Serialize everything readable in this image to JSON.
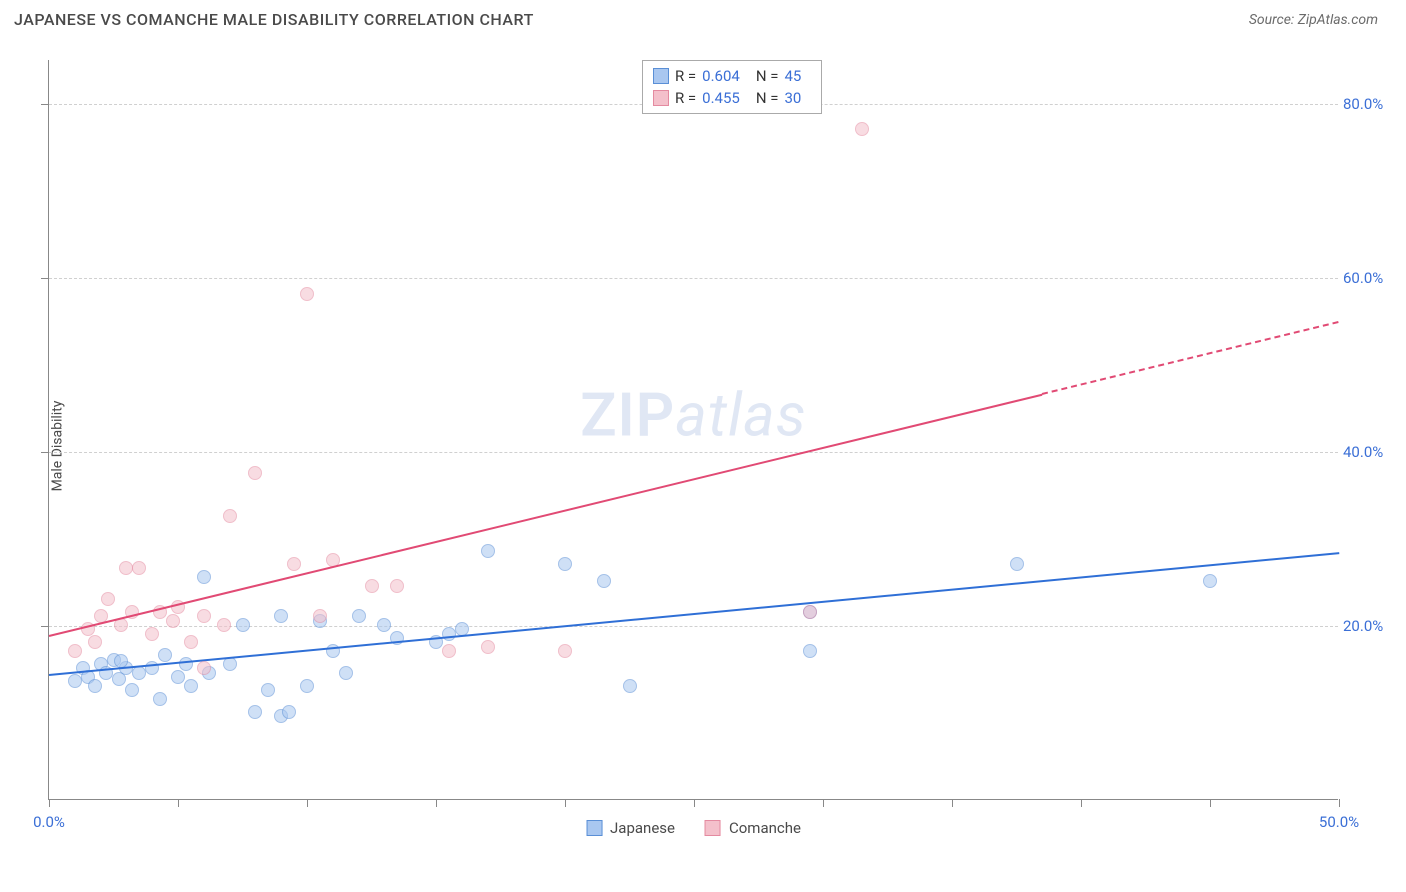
{
  "title": "JAPANESE VS COMANCHE MALE DISABILITY CORRELATION CHART",
  "source_label": "Source: ",
  "source_name": "ZipAtlas.com",
  "y_axis_label": "Male Disability",
  "watermark_zip": "ZIP",
  "watermark_atlas": "atlas",
  "chart": {
    "type": "scatter",
    "xlim": [
      0,
      50
    ],
    "ylim": [
      0,
      85
    ],
    "x_ticks": [
      0,
      5,
      10,
      15,
      20,
      25,
      30,
      35,
      40,
      45,
      50
    ],
    "x_tick_labels": {
      "0": "0.0%",
      "50": "50.0%"
    },
    "y_grid": [
      20,
      40,
      60,
      80
    ],
    "y_tick_labels": {
      "20": "20.0%",
      "40": "40.0%",
      "60": "60.0%",
      "80": "80.0%"
    },
    "background_color": "#ffffff",
    "grid_color": "#d0d0d0",
    "axis_color": "#888888",
    "marker_size": 14,
    "marker_opacity": 0.55,
    "series": [
      {
        "name": "Japanese",
        "color_fill": "#a9c7f0",
        "color_stroke": "#5a8fd6",
        "r": "0.604",
        "n": "45",
        "trend": {
          "x1": 0,
          "y1": 14.5,
          "x2": 50,
          "y2": 28.5,
          "color": "#2f6fd6",
          "dash_after_x": null
        },
        "points": [
          [
            1.0,
            13.5
          ],
          [
            1.3,
            15.0
          ],
          [
            1.5,
            14.0
          ],
          [
            1.8,
            13.0
          ],
          [
            2.0,
            15.5
          ],
          [
            2.2,
            14.5
          ],
          [
            2.5,
            16.0
          ],
          [
            2.7,
            13.8
          ],
          [
            3.0,
            15.0
          ],
          [
            3.2,
            12.5
          ],
          [
            3.5,
            14.5
          ],
          [
            2.8,
            15.8
          ],
          [
            4.0,
            15.0
          ],
          [
            4.3,
            11.5
          ],
          [
            4.5,
            16.5
          ],
          [
            5.0,
            14.0
          ],
          [
            5.3,
            15.5
          ],
          [
            5.5,
            13.0
          ],
          [
            6.0,
            25.5
          ],
          [
            6.2,
            14.5
          ],
          [
            7.0,
            15.5
          ],
          [
            7.5,
            20.0
          ],
          [
            8.0,
            10.0
          ],
          [
            8.5,
            12.5
          ],
          [
            9.0,
            9.5
          ],
          [
            9.3,
            10.0
          ],
          [
            9.0,
            21.0
          ],
          [
            10.0,
            13.0
          ],
          [
            10.5,
            20.5
          ],
          [
            11.0,
            17.0
          ],
          [
            11.5,
            14.5
          ],
          [
            12.0,
            21.0
          ],
          [
            13.0,
            20.0
          ],
          [
            13.5,
            18.5
          ],
          [
            15.0,
            18.0
          ],
          [
            16.0,
            19.5
          ],
          [
            17.0,
            28.5
          ],
          [
            20.0,
            27.0
          ],
          [
            21.5,
            25.0
          ],
          [
            22.5,
            13.0
          ],
          [
            29.5,
            17.0
          ],
          [
            29.5,
            21.5
          ],
          [
            37.5,
            27.0
          ],
          [
            45.0,
            25.0
          ],
          [
            15.5,
            19.0
          ]
        ]
      },
      {
        "name": "Comanche",
        "color_fill": "#f4c0cb",
        "color_stroke": "#e48aa0",
        "r": "0.455",
        "n": "30",
        "trend": {
          "x1": 0,
          "y1": 19.0,
          "x2": 50,
          "y2": 55.0,
          "color": "#e14a74",
          "dash_after_x": 38.5
        },
        "points": [
          [
            1.0,
            17.0
          ],
          [
            1.5,
            19.5
          ],
          [
            1.8,
            18.0
          ],
          [
            2.0,
            21.0
          ],
          [
            2.3,
            23.0
          ],
          [
            2.8,
            20.0
          ],
          [
            3.0,
            26.5
          ],
          [
            3.2,
            21.5
          ],
          [
            3.5,
            26.5
          ],
          [
            4.0,
            19.0
          ],
          [
            4.3,
            21.5
          ],
          [
            4.8,
            20.5
          ],
          [
            5.0,
            22.0
          ],
          [
            5.5,
            18.0
          ],
          [
            6.0,
            21.0
          ],
          [
            6.0,
            15.0
          ],
          [
            6.8,
            20.0
          ],
          [
            7.0,
            32.5
          ],
          [
            8.0,
            37.5
          ],
          [
            9.5,
            27.0
          ],
          [
            10.0,
            58.0
          ],
          [
            10.5,
            21.0
          ],
          [
            11.0,
            27.5
          ],
          [
            12.5,
            24.5
          ],
          [
            13.5,
            24.5
          ],
          [
            15.5,
            17.0
          ],
          [
            17.0,
            17.5
          ],
          [
            20.0,
            17.0
          ],
          [
            29.5,
            21.5
          ],
          [
            31.5,
            77.0
          ]
        ]
      }
    ]
  },
  "legend_r_label": "R =",
  "legend_n_label": "N ="
}
